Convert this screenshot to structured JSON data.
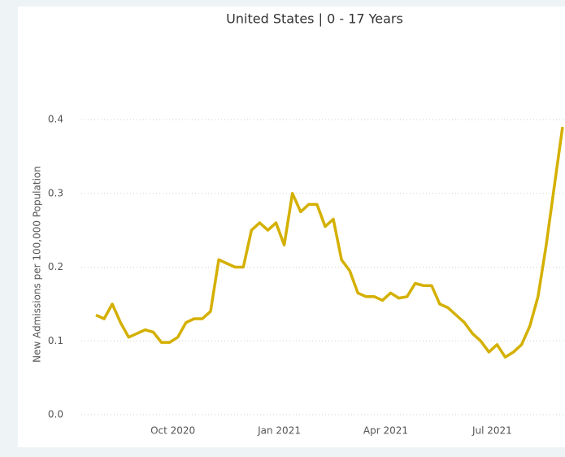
{
  "chart_data": {
    "type": "line",
    "title": "United States | 0 - 17 Years",
    "y_label": "New Admissions per 100,000 Population",
    "categories": [
      null,
      null,
      null,
      null,
      null,
      null,
      null,
      null,
      null,
      "Oct 2020",
      null,
      null,
      null,
      null,
      null,
      null,
      null,
      null,
      null,
      null,
      null,
      null,
      "Jan 2021",
      null,
      null,
      null,
      null,
      null,
      null,
      null,
      null,
      null,
      null,
      null,
      null,
      "Apr 2021",
      null,
      null,
      null,
      null,
      null,
      null,
      null,
      null,
      null,
      null,
      null,
      null,
      "Jul 2021",
      null,
      null,
      null,
      null,
      null,
      null,
      null,
      null,
      null
    ],
    "series": [
      {
        "name": "New Admissions",
        "color": "#d4b000",
        "values": [
          0.135,
          0.13,
          0.15,
          0.125,
          0.105,
          0.11,
          0.115,
          0.112,
          0.098,
          0.098,
          0.105,
          0.125,
          0.13,
          0.13,
          0.14,
          0.21,
          0.205,
          0.2,
          0.2,
          0.25,
          0.26,
          0.25,
          0.26,
          0.23,
          0.3,
          0.275,
          0.285,
          0.285,
          0.255,
          0.265,
          0.21,
          0.195,
          0.165,
          0.16,
          0.16,
          0.155,
          0.165,
          0.158,
          0.16,
          0.178,
          0.175,
          0.175,
          0.15,
          0.145,
          0.135,
          0.125,
          0.11,
          0.1,
          0.085,
          0.095,
          0.078,
          0.085,
          0.095,
          0.12,
          0.16,
          0.23,
          0.31,
          0.39
        ]
      }
    ],
    "ylim": [
      0,
      0.4
    ],
    "yticks": [
      {
        "value": 0,
        "label": "0.0"
      },
      0.1,
      0.2,
      0.3,
      0.4
    ],
    "grid": true
  }
}
